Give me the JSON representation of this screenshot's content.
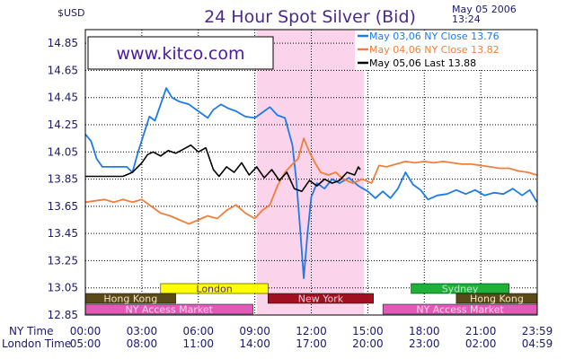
{
  "header": {
    "currency_label": "$USD",
    "title": "24 Hour Spot Silver (Bid)",
    "date_line": "May  05  2006",
    "time_line": "13:24"
  },
  "watermark": "www.kitco.com",
  "colors": {
    "plot_border": "#000000",
    "grid": "#000000",
    "ny_session_shade": "#fbd3ea",
    "series_may03": "#1e7be6",
    "series_may04": "#f07f3c",
    "series_may05": "#000000",
    "title": "#4a2a8c",
    "axis_text": "#1a1a6e"
  },
  "row_labels": {
    "ny_time": "NY Time",
    "london_time": "London Time"
  },
  "sessions": {
    "london": {
      "label": "London",
      "color": "#ffff00",
      "text_color": "#4a2a8c",
      "start": 4,
      "end": 9.7
    },
    "sydney": {
      "label": "Sydney",
      "color": "#1fb03a",
      "text_color": "#bfe8c7",
      "start": 17.3,
      "end": 22.5
    },
    "hong_kong_1": {
      "label": "Hong  Kong",
      "color": "#5a4a1a",
      "text_color": "#f0e6c8",
      "start": 0,
      "end": 4.8
    },
    "new_york": {
      "label": "New  York",
      "color": "#a01020",
      "text_color": "#f0d0d8",
      "start": 9.7,
      "end": 15.3
    },
    "hong_kong_2": {
      "label": "Hong  Kong",
      "color": "#5a4a1a",
      "text_color": "#f0e6c8",
      "start": 19.7,
      "end": 24
    },
    "ny_access_1": {
      "label": "NY  Access  Market",
      "color": "#e05ab8",
      "text_color": "#f5d8ee",
      "start": 0,
      "end": 8.9
    },
    "ny_access_2": {
      "label": "NY  Access  Market",
      "color": "#e05ab8",
      "text_color": "#f5d8ee",
      "start": 15.8,
      "end": 24
    }
  },
  "chart_data": {
    "type": "line",
    "title": "24 Hour Spot Silver (Bid)",
    "ylabel": "$USD",
    "ylim": [
      12.85,
      14.95
    ],
    "xlim": [
      0,
      24
    ],
    "y_ticks": [
      "14.85",
      "14.65",
      "14.45",
      "14.25",
      "14.05",
      "13.85",
      "13.65",
      "13.45",
      "13.25",
      "13.05",
      "12.85"
    ],
    "x_ticks_ny": [
      "00:00",
      "03:00",
      "06:00",
      "09:00",
      "12:00",
      "15:00",
      "18:00",
      "21:00",
      "23:59"
    ],
    "x_ticks_london": [
      "05:00",
      "08:00",
      "11:00",
      "14:00",
      "17:00",
      "20:00",
      "23:00",
      "02:00",
      "04:59"
    ],
    "legend_position": "top-right",
    "ny_session_shade": [
      9.1,
      14.8
    ],
    "series": [
      {
        "name": "May  03,06  NY  Close  13.76",
        "color": "#1e7be6",
        "points": [
          [
            0,
            14.18
          ],
          [
            0.3,
            14.13
          ],
          [
            0.6,
            14.0
          ],
          [
            0.9,
            13.94
          ],
          [
            1.5,
            13.94
          ],
          [
            2.2,
            13.94
          ],
          [
            2.5,
            13.9
          ],
          [
            2.8,
            14.05
          ],
          [
            3.1,
            14.18
          ],
          [
            3.4,
            14.31
          ],
          [
            3.7,
            14.28
          ],
          [
            4.0,
            14.4
          ],
          [
            4.3,
            14.52
          ],
          [
            4.6,
            14.45
          ],
          [
            5.0,
            14.42
          ],
          [
            5.5,
            14.4
          ],
          [
            6.0,
            14.35
          ],
          [
            6.5,
            14.3
          ],
          [
            6.8,
            14.36
          ],
          [
            7.2,
            14.4
          ],
          [
            7.6,
            14.37
          ],
          [
            8.0,
            14.35
          ],
          [
            8.5,
            14.31
          ],
          [
            9.0,
            14.3
          ],
          [
            9.4,
            14.34
          ],
          [
            9.8,
            14.38
          ],
          [
            10.2,
            14.32
          ],
          [
            10.6,
            14.3
          ],
          [
            11.0,
            14.1
          ],
          [
            11.2,
            13.85
          ],
          [
            11.4,
            13.5
          ],
          [
            11.6,
            13.12
          ],
          [
            11.8,
            13.45
          ],
          [
            12.0,
            13.72
          ],
          [
            12.3,
            13.82
          ],
          [
            12.7,
            13.78
          ],
          [
            13.1,
            13.85
          ],
          [
            13.5,
            13.82
          ],
          [
            14.0,
            13.86
          ],
          [
            14.5,
            13.8
          ],
          [
            15.0,
            13.76
          ],
          [
            15.4,
            13.71
          ],
          [
            15.8,
            13.76
          ],
          [
            16.2,
            13.71
          ],
          [
            16.6,
            13.78
          ],
          [
            17.0,
            13.9
          ],
          [
            17.4,
            13.81
          ],
          [
            17.8,
            13.77
          ],
          [
            18.2,
            13.7
          ],
          [
            18.7,
            13.73
          ],
          [
            19.2,
            13.74
          ],
          [
            19.7,
            13.77
          ],
          [
            20.2,
            13.74
          ],
          [
            20.7,
            13.77
          ],
          [
            21.2,
            13.73
          ],
          [
            21.7,
            13.75
          ],
          [
            22.2,
            13.74
          ],
          [
            22.7,
            13.78
          ],
          [
            23.2,
            13.73
          ],
          [
            23.6,
            13.77
          ],
          [
            23.99,
            13.68
          ]
        ]
      },
      {
        "name": "May  04,06  NY  Close  13.82",
        "color": "#f07f3c",
        "points": [
          [
            0,
            13.68
          ],
          [
            0.5,
            13.69
          ],
          [
            1.0,
            13.7
          ],
          [
            1.5,
            13.68
          ],
          [
            2.0,
            13.7
          ],
          [
            2.5,
            13.68
          ],
          [
            3.0,
            13.7
          ],
          [
            3.5,
            13.65
          ],
          [
            4.0,
            13.6
          ],
          [
            4.5,
            13.58
          ],
          [
            5.0,
            13.55
          ],
          [
            5.5,
            13.52
          ],
          [
            6.0,
            13.55
          ],
          [
            6.5,
            13.58
          ],
          [
            7.0,
            13.56
          ],
          [
            7.5,
            13.62
          ],
          [
            8.0,
            13.66
          ],
          [
            8.5,
            13.6
          ],
          [
            9.0,
            13.56
          ],
          [
            9.4,
            13.62
          ],
          [
            9.8,
            13.66
          ],
          [
            10.2,
            13.8
          ],
          [
            10.6,
            13.9
          ],
          [
            11.0,
            13.96
          ],
          [
            11.3,
            14.0
          ],
          [
            11.6,
            14.15
          ],
          [
            11.9,
            14.05
          ],
          [
            12.2,
            13.97
          ],
          [
            12.5,
            13.9
          ],
          [
            12.9,
            13.88
          ],
          [
            13.3,
            13.9
          ],
          [
            13.7,
            13.85
          ],
          [
            14.2,
            13.82
          ],
          [
            14.7,
            13.85
          ],
          [
            15.2,
            13.82
          ],
          [
            15.6,
            13.95
          ],
          [
            16.0,
            13.94
          ],
          [
            16.5,
            13.96
          ],
          [
            17.0,
            13.98
          ],
          [
            17.5,
            13.97
          ],
          [
            18.0,
            13.98
          ],
          [
            18.5,
            13.97
          ],
          [
            19.0,
            13.98
          ],
          [
            19.5,
            13.97
          ],
          [
            20.0,
            13.96
          ],
          [
            20.5,
            13.96
          ],
          [
            21.0,
            13.95
          ],
          [
            21.5,
            13.94
          ],
          [
            22.0,
            13.93
          ],
          [
            22.5,
            13.93
          ],
          [
            23.0,
            13.91
          ],
          [
            23.5,
            13.9
          ],
          [
            23.99,
            13.88
          ]
        ]
      },
      {
        "name": "May  05,06  Last  13.88",
        "color": "#000000",
        "points": [
          [
            0,
            13.87
          ],
          [
            0.5,
            13.87
          ],
          [
            1.0,
            13.87
          ],
          [
            1.5,
            13.87
          ],
          [
            2.0,
            13.87
          ],
          [
            2.5,
            13.9
          ],
          [
            3.0,
            13.97
          ],
          [
            3.3,
            14.03
          ],
          [
            3.6,
            14.05
          ],
          [
            4.0,
            14.02
          ],
          [
            4.4,
            14.06
          ],
          [
            4.8,
            14.04
          ],
          [
            5.2,
            14.07
          ],
          [
            5.6,
            14.1
          ],
          [
            6.0,
            14.05
          ],
          [
            6.4,
            14.08
          ],
          [
            6.8,
            13.92
          ],
          [
            7.1,
            13.87
          ],
          [
            7.5,
            13.94
          ],
          [
            7.9,
            13.9
          ],
          [
            8.3,
            13.97
          ],
          [
            8.7,
            13.88
          ],
          [
            9.1,
            13.94
          ],
          [
            9.5,
            13.86
          ],
          [
            9.9,
            13.92
          ],
          [
            10.3,
            13.84
          ],
          [
            10.7,
            13.9
          ],
          [
            11.1,
            13.78
          ],
          [
            11.5,
            13.76
          ],
          [
            11.9,
            13.84
          ],
          [
            12.3,
            13.8
          ],
          [
            12.7,
            13.85
          ],
          [
            13.1,
            13.82
          ],
          [
            13.5,
            13.84
          ],
          [
            13.9,
            13.9
          ],
          [
            14.3,
            13.88
          ],
          [
            14.5,
            13.94
          ],
          [
            14.6,
            13.92
          ]
        ]
      }
    ]
  }
}
